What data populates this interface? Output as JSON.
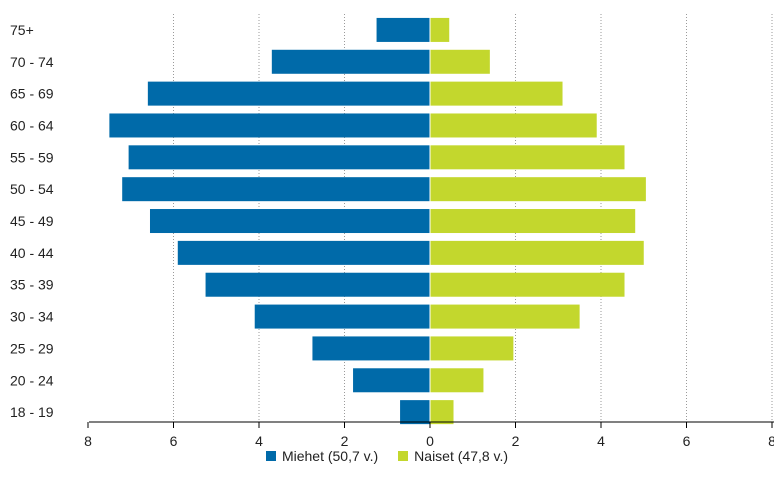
{
  "chart_data": {
    "type": "bar",
    "orientation": "horizontal",
    "layout": "population-pyramid",
    "categories": [
      "18 - 19",
      "20 - 24",
      "25 - 29",
      "30 - 34",
      "35 - 39",
      "40 - 44",
      "45 - 49",
      "50 - 54",
      "55 - 59",
      "60 - 64",
      "65 - 69",
      "70 - 74",
      "75+"
    ],
    "series": [
      {
        "name": "Miehet (50,7 v.)",
        "side": "left",
        "color": "#006aa9",
        "values": [
          0.7,
          1.8,
          2.75,
          4.1,
          5.25,
          5.9,
          6.55,
          7.2,
          7.05,
          7.5,
          6.6,
          3.7,
          1.25
        ]
      },
      {
        "name": "Naiset (47,8 v.)",
        "side": "right",
        "color": "#c3d72d",
        "values": [
          0.55,
          1.25,
          1.95,
          3.5,
          4.55,
          5.0,
          4.8,
          5.05,
          4.55,
          3.9,
          3.1,
          1.4,
          0.45
        ]
      }
    ],
    "xlim": [
      -8,
      8
    ],
    "xticks": [
      "8",
      "6",
      "4",
      "2",
      "0",
      "2",
      "4",
      "6",
      "8"
    ],
    "grid": "vertical-dotted",
    "legend": "bottom-center"
  }
}
